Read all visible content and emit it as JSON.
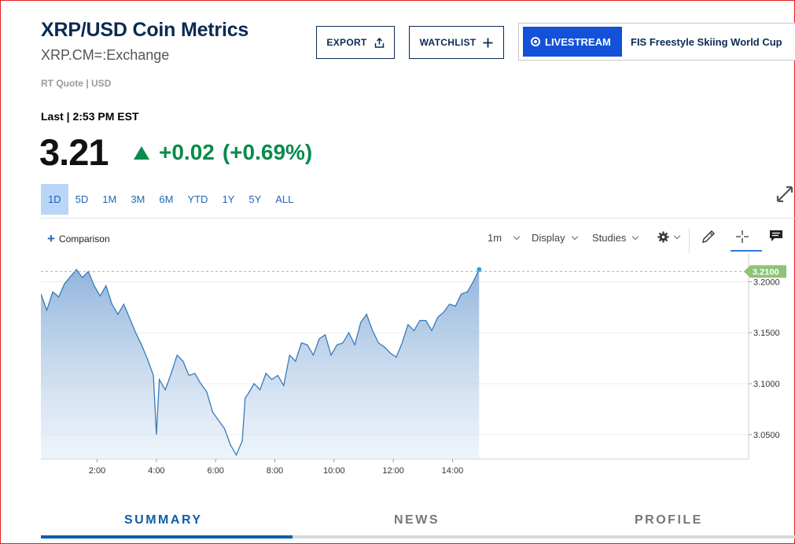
{
  "header": {
    "title": "XRP/USD Coin Metrics",
    "subtitle": "XRP.CM=:Exchange",
    "rt_quote": "RT Quote | USD"
  },
  "actions": {
    "export_label": "EXPORT",
    "watchlist_label": "WATCHLIST"
  },
  "livestream": {
    "badge_label": "LIVESTREAM",
    "headline": "FIS Freestyle Skiing World Cup",
    "badge_color": "#1351d8"
  },
  "quote": {
    "last_label": "Last | 2:53 PM EST",
    "price": "3.21",
    "change": "+0.02",
    "change_pct": "(+0.69%)",
    "change_color": "#0a8a4c"
  },
  "ranges": [
    {
      "label": "1D",
      "active": true
    },
    {
      "label": "5D",
      "active": false
    },
    {
      "label": "1M",
      "active": false
    },
    {
      "label": "3M",
      "active": false
    },
    {
      "label": "6M",
      "active": false
    },
    {
      "label": "YTD",
      "active": false
    },
    {
      "label": "1Y",
      "active": false
    },
    {
      "label": "5Y",
      "active": false
    },
    {
      "label": "ALL",
      "active": false
    }
  ],
  "toolbar": {
    "comparison_label": "Comparison",
    "interval_label": "1m",
    "display_label": "Display",
    "studies_label": "Studies",
    "icons": [
      "gear-icon",
      "pencil-icon",
      "crosshair-icon",
      "comment-icon",
      "expand-icon"
    ]
  },
  "chart_data": {
    "type": "area",
    "x_ticks": [
      "2:00",
      "4:00",
      "6:00",
      "8:00",
      "10:00",
      "12:00",
      "14:00"
    ],
    "y_ticks": [
      "3.2000",
      "3.1500",
      "3.1000",
      "3.0500"
    ],
    "ylim": [
      3.026,
      3.228
    ],
    "x_range_hours": [
      0.1,
      24.0
    ],
    "last_price_label": "3.2100",
    "last_price": 3.21,
    "line_color": "#3a7ab9",
    "grid": "horizontal",
    "series": [
      {
        "x": [
          0.1,
          0.3,
          0.5,
          0.7,
          0.9,
          1.1,
          1.3,
          1.5,
          1.7,
          1.9,
          2.1,
          2.3,
          2.5,
          2.7,
          2.9,
          3.1,
          3.3,
          3.5,
          3.7,
          3.9,
          4.0,
          4.1,
          4.3,
          4.5,
          4.7,
          4.9,
          5.1,
          5.3,
          5.5,
          5.7,
          5.9,
          6.1,
          6.3,
          6.5,
          6.7,
          6.9,
          7.0,
          7.1,
          7.3,
          7.5,
          7.7,
          7.9,
          8.1,
          8.3,
          8.5,
          8.7,
          8.9,
          9.1,
          9.3,
          9.5,
          9.7,
          9.9,
          10.1,
          10.3,
          10.5,
          10.7,
          10.9,
          11.1,
          11.3,
          11.5,
          11.7,
          11.9,
          12.1,
          12.3,
          12.5,
          12.7,
          12.9,
          13.1,
          13.3,
          13.5,
          13.7,
          13.9,
          14.1,
          14.3,
          14.5,
          14.7,
          14.9
        ],
        "y": [
          3.188,
          3.172,
          3.19,
          3.185,
          3.198,
          3.205,
          3.212,
          3.204,
          3.21,
          3.196,
          3.186,
          3.196,
          3.178,
          3.168,
          3.178,
          3.164,
          3.15,
          3.138,
          3.124,
          3.108,
          3.05,
          3.104,
          3.094,
          3.11,
          3.128,
          3.122,
          3.108,
          3.11,
          3.1,
          3.092,
          3.072,
          3.064,
          3.056,
          3.04,
          3.03,
          3.044,
          3.086,
          3.09,
          3.1,
          3.094,
          3.11,
          3.104,
          3.108,
          3.098,
          3.128,
          3.122,
          3.14,
          3.138,
          3.128,
          3.144,
          3.148,
          3.128,
          3.138,
          3.14,
          3.15,
          3.138,
          3.16,
          3.168,
          3.152,
          3.14,
          3.136,
          3.13,
          3.126,
          3.14,
          3.158,
          3.152,
          3.162,
          3.162,
          3.152,
          3.165,
          3.17,
          3.178,
          3.176,
          3.188,
          3.19,
          3.2,
          3.212
        ]
      }
    ]
  },
  "tabs": [
    {
      "label": "SUMMARY",
      "active": true
    },
    {
      "label": "NEWS",
      "active": false
    },
    {
      "label": "PROFILE",
      "active": false
    }
  ]
}
